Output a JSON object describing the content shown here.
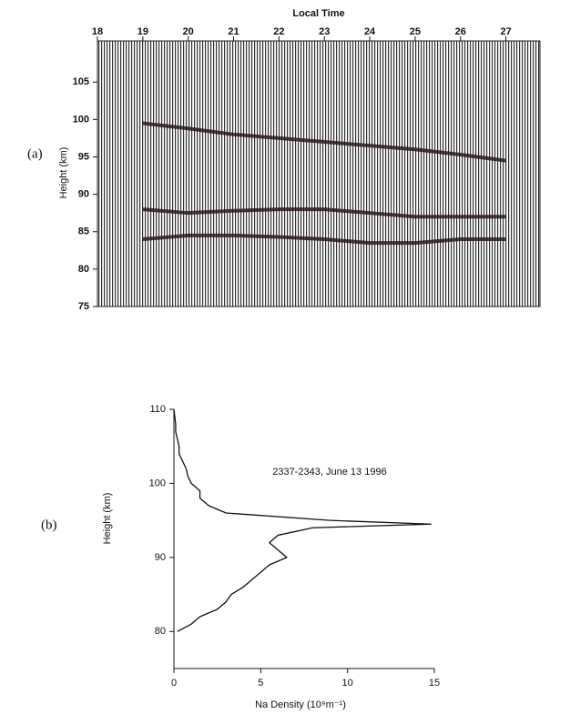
{
  "chart_data": [
    {
      "type": "line",
      "label": "(a)",
      "title": "Local Time",
      "ylabel": "Height (km)",
      "xaxis_position": "top",
      "xlim": [
        18,
        27.75
      ],
      "xticks": [
        18,
        19,
        20,
        21,
        22,
        23,
        24,
        25,
        26,
        27
      ],
      "ylim": [
        75,
        110.5
      ],
      "yticks": [
        75,
        80,
        85,
        90,
        95,
        100,
        105
      ],
      "line_color": "#2a1a1a",
      "series": [
        {
          "x": [
            19,
            20,
            21,
            22,
            23,
            24,
            25,
            26,
            27
          ],
          "values": [
            99.5,
            98.8,
            98,
            97.5,
            97,
            96.5,
            96,
            95.3,
            94.5
          ]
        },
        {
          "x": [
            19,
            20,
            21,
            22,
            23,
            24,
            25,
            26,
            27
          ],
          "values": [
            88,
            87.5,
            87.8,
            88,
            88,
            87.5,
            87,
            87,
            87
          ]
        },
        {
          "x": [
            19,
            20,
            21,
            22,
            23,
            24,
            25,
            26,
            27
          ],
          "values": [
            84,
            84.5,
            84.5,
            84.3,
            84,
            83.5,
            83.5,
            84,
            84
          ]
        }
      ]
    },
    {
      "type": "line",
      "label": "(b)",
      "xlabel": "Na Density (10⁹m⁻¹)",
      "ylabel": "Height (km)",
      "annotation": "2337-2343, June 13 1996",
      "xlim": [
        0,
        15
      ],
      "xticks": [
        0,
        5,
        10,
        15
      ],
      "ylim": [
        75,
        110
      ],
      "yticks": [
        80,
        90,
        100,
        110
      ],
      "line_color": "#111111",
      "series": [
        {
          "x": [
            0.2,
            1,
            1.5,
            2.5,
            3,
            3.3,
            4,
            4.5,
            5,
            5.5,
            6.5,
            6,
            5.5,
            6,
            8,
            14.8,
            9,
            3,
            2,
            1.5,
            1.5,
            1,
            0.8,
            0.7,
            0.5,
            0.3,
            0.3,
            0.2,
            0.1,
            0.1,
            0.05,
            0
          ],
          "values": [
            80,
            81,
            82,
            83,
            84,
            85,
            86,
            87,
            88,
            89,
            90,
            91,
            92,
            93,
            94,
            94.5,
            95,
            96,
            97,
            98,
            99,
            100,
            101,
            102,
            103,
            104,
            105,
            106,
            107,
            108,
            109,
            110
          ]
        }
      ]
    }
  ]
}
